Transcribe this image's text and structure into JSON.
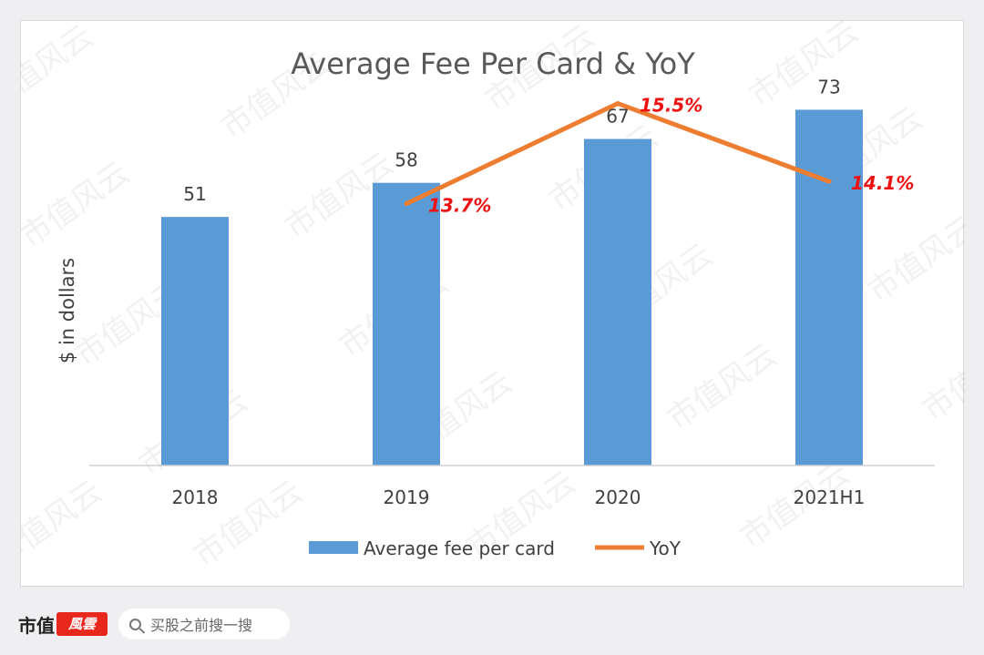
{
  "chart_data": {
    "type": "bar",
    "title": "Average Fee Per Card & YoY",
    "ylabel": "$ in dollars",
    "xlabel": "",
    "categories": [
      "2018",
      "2019",
      "2020",
      "2021H1"
    ],
    "series": [
      {
        "name": "Average fee per card",
        "type": "bar",
        "color": "#5b9bd5",
        "values": [
          51,
          58,
          67,
          73
        ],
        "data_labels": [
          "51",
          "58",
          "67",
          "73"
        ]
      },
      {
        "name": "YoY",
        "type": "line",
        "axis": "secondary",
        "color": "#ed7d31",
        "values": [
          null,
          13.7,
          15.5,
          14.1
        ],
        "data_labels": [
          "",
          "13.7%",
          "15.5%",
          "14.1%"
        ]
      }
    ],
    "ylim": [
      0,
      80
    ],
    "y2lim": [
      9,
      16
    ],
    "grid": false,
    "legend": "bottom"
  },
  "watermark": {
    "text": "市值风云"
  },
  "footer": {
    "brand": "市值",
    "brand_mark": "風雲",
    "search_placeholder": "买股之前搜一搜",
    "icon": "search-icon"
  }
}
